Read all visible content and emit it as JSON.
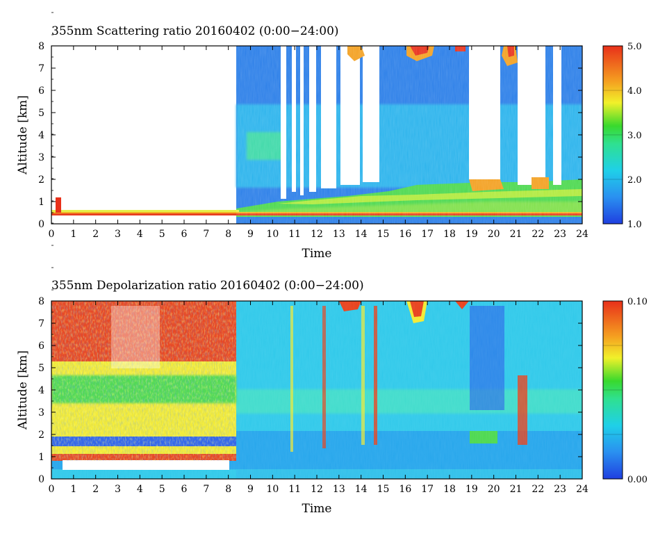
{
  "panels": [
    {
      "title": "355nm Scattering ratio  20160402 (0:00−24:00)",
      "xlabel": "Time",
      "ylabel": "Altitude [km]",
      "colorbar_labels": [
        "5.0",
        "4.0",
        "3.0",
        "2.0",
        "1.0"
      ]
    },
    {
      "title": "355nm Depolarization ratio  20160402 (0:00−24:00)",
      "xlabel": "Time",
      "ylabel": "Altitude [km]",
      "colorbar_labels": [
        "0.10",
        "0.00"
      ]
    }
  ],
  "chart_data": [
    {
      "type": "heatmap",
      "title": "355nm Scattering ratio  20160402 (0:00−24:00)",
      "xlabel": "Time",
      "ylabel": "Altitude [km]",
      "x_ticks": [
        "0",
        "1",
        "2",
        "3",
        "4",
        "5",
        "6",
        "7",
        "8",
        "9",
        "10",
        "11",
        "12",
        "13",
        "14",
        "15",
        "16",
        "17",
        "18",
        "19",
        "20",
        "21",
        "22",
        "23",
        "24"
      ],
      "y_ticks": [
        "0",
        "1",
        "2",
        "3",
        "4",
        "5",
        "6",
        "7",
        "8"
      ],
      "xlim": [
        0,
        24
      ],
      "ylim": [
        0,
        8
      ],
      "colorbar": {
        "range": [
          1.0,
          5.0
        ],
        "ticks": [
          "1.0",
          "2.0",
          "3.0",
          "4.0",
          "5.0"
        ],
        "colormap": "rainbow (blue to red)"
      },
      "missing_value_color": "#ffffff",
      "features": [
        {
          "name": "near-surface layer",
          "x": [
            0,
            24
          ],
          "altitude_km": [
            0.4,
            0.6
          ],
          "value": ">5.0"
        },
        {
          "name": "boundary layer aerosol",
          "x": [
            8.3,
            24
          ],
          "altitude_km": [
            0.5,
            1.8
          ],
          "value": "2.5-3.5"
        },
        {
          "name": "clear air above",
          "x": [
            8.3,
            24
          ],
          "altitude_km": [
            1.8,
            8
          ],
          "value": "1.2-2.0"
        },
        {
          "name": "cloud tops",
          "x": [
            12.5,
            22.0
          ],
          "altitude_km": [
            7.3,
            8
          ],
          "value": ">5.0"
        },
        {
          "name": "cloud near 0.3h",
          "x": [
            0.25,
            0.35
          ],
          "altitude_km": [
            0.6,
            1.2
          ],
          "value": ">5.0"
        }
      ]
    },
    {
      "type": "heatmap",
      "title": "355nm Depolarization ratio  20160402 (0:00−24:00)",
      "xlabel": "Time",
      "ylabel": "Altitude [km]",
      "x_ticks": [
        "0",
        "1",
        "2",
        "3",
        "4",
        "5",
        "6",
        "7",
        "8",
        "9",
        "10",
        "11",
        "12",
        "13",
        "14",
        "15",
        "16",
        "17",
        "18",
        "19",
        "20",
        "21",
        "22",
        "23",
        "24"
      ],
      "y_ticks": [
        "0",
        "1",
        "2",
        "3",
        "4",
        "5",
        "6",
        "7",
        "8"
      ],
      "xlim": [
        0,
        24
      ],
      "ylim": [
        0,
        8
      ],
      "colorbar": {
        "range": [
          0.0,
          0.1
        ],
        "ticks": [
          "0.00",
          "0.10"
        ],
        "colormap": "rainbow (blue to red)"
      },
      "missing_value_color": "#ffffff",
      "features": [
        {
          "name": "high-depolarization (night)",
          "x": [
            0,
            8.3
          ],
          "altitude_km": [
            1,
            8
          ],
          "value": "0.05-0.10"
        },
        {
          "name": "low layer boundary",
          "x": [
            0.4,
            8.3
          ],
          "altitude_km": [
            0.5,
            0.8
          ],
          "value": ">0.10"
        },
        {
          "name": "background (day)",
          "x": [
            8.3,
            24
          ],
          "altitude_km": [
            0,
            8
          ],
          "value": "0.01-0.04"
        },
        {
          "name": "cloud tops",
          "x": [
            12.8,
            19.5
          ],
          "altitude_km": [
            7.3,
            8
          ],
          "value": ">0.10"
        }
      ]
    }
  ]
}
